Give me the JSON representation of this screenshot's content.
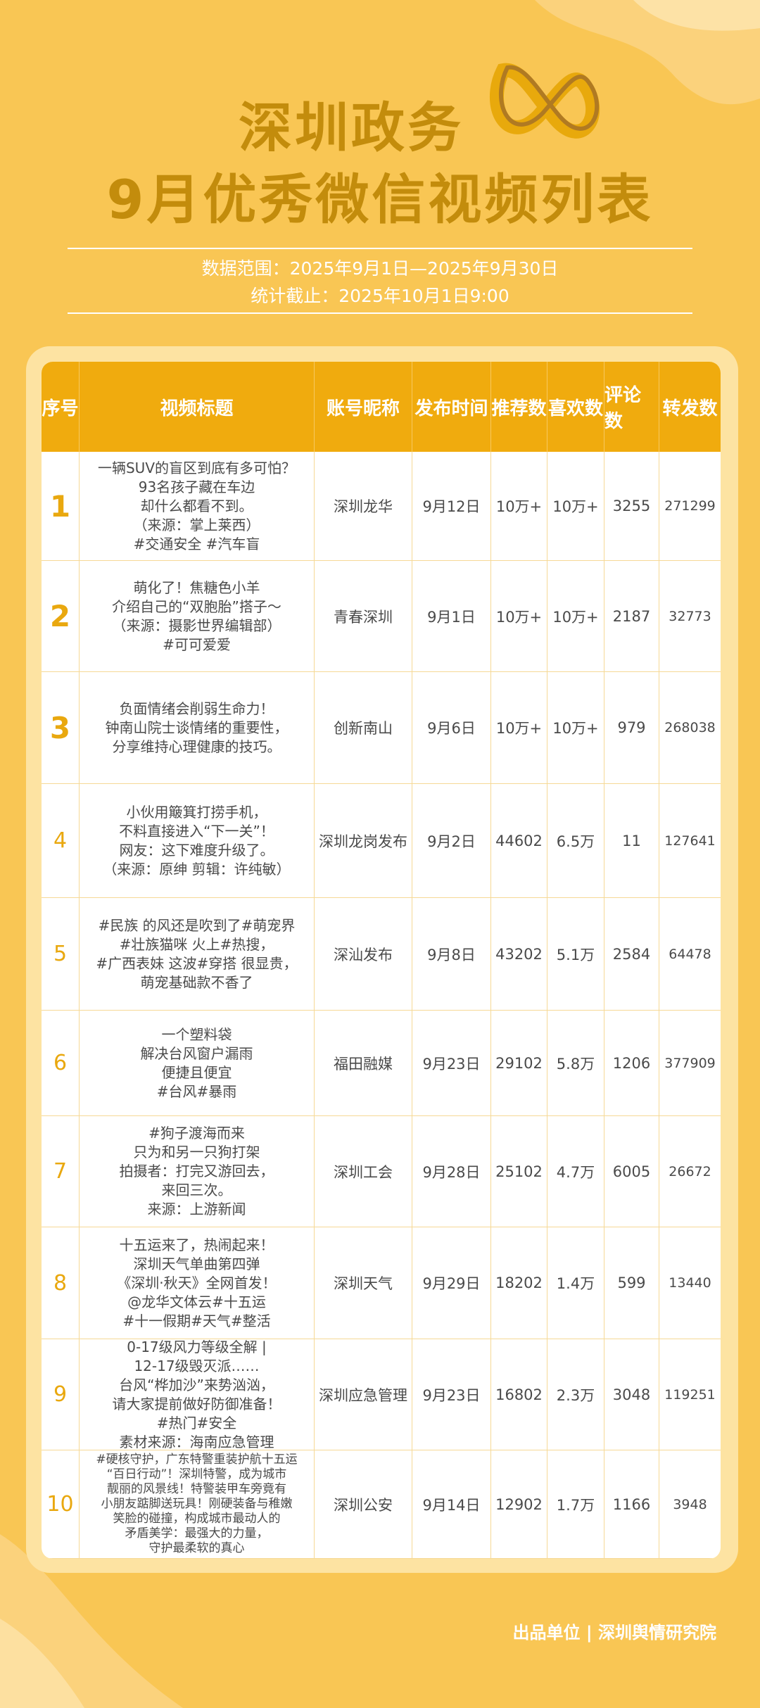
{
  "header": {
    "title_line1": "深圳政务",
    "title_line2": "9月优秀微信视频列表",
    "range": "数据范围：2025年9月1日—2025年9月30日",
    "cutoff": "统计截止：2025年10月1日9:00"
  },
  "table": {
    "headers": [
      "序号",
      "视频标题",
      "账号昵称",
      "发布时间",
      "推荐数",
      "喜欢数",
      "评论数",
      "转发数"
    ],
    "rows": [
      {
        "rank": "1",
        "title": [
          "一辆SUV的盲区到底有多可怕？",
          "93名孩子藏在车边",
          "却什么都看不到。",
          "（来源：掌上莱西）",
          "#交通安全 #汽车盲"
        ],
        "account": "深圳龙华",
        "date": "9月12日",
        "recommend": "10万+",
        "likes": "10万+",
        "comments": 3255,
        "shares": 271299
      },
      {
        "rank": "2",
        "title": [
          "萌化了！焦糖色小羊",
          "介绍自己的“双胞胎”搭子～",
          "（来源：摄影世界编辑部）",
          "#可可爱爱"
        ],
        "account": "青春深圳",
        "date": "9月1日",
        "recommend": "10万+",
        "likes": "10万+",
        "comments": 2187,
        "shares": 32773
      },
      {
        "rank": "3",
        "title": [
          "负面情绪会削弱生命力！",
          "钟南山院士谈情绪的重要性，",
          "分享维持心理健康的技巧。"
        ],
        "account": "创新南山",
        "date": "9月6日",
        "recommend": "10万+",
        "likes": "10万+",
        "comments": 979,
        "shares": 268038
      },
      {
        "rank": "4",
        "title": [
          "小伙用簸箕打捞手机，",
          "不料直接进入“下一关”！",
          "网友：这下难度升级了。",
          "（来源：原绅 剪辑：许纯敏）"
        ],
        "account": "深圳龙岗发布",
        "date": "9月2日",
        "recommend": 44602,
        "likes": "6.5万",
        "comments": 11,
        "shares": 127641
      },
      {
        "rank": "5",
        "title": [
          "#民族 的风还是吹到了#萌宠界",
          "#壮族猫咪 火上#热搜，",
          "#广西表妹 这波#穿搭 很显贵，",
          "萌宠基础款不香了"
        ],
        "account": "深汕发布",
        "date": "9月8日",
        "recommend": 43202,
        "likes": "5.1万",
        "comments": 2584,
        "shares": 64478
      },
      {
        "rank": "6",
        "title": [
          "一个塑料袋",
          "解决台风窗户漏雨",
          "便捷且便宜",
          "#台风#暴雨"
        ],
        "account": "福田融媒",
        "date": "9月23日",
        "recommend": 29102,
        "likes": "5.8万",
        "comments": 1206,
        "shares": 377909
      },
      {
        "rank": "7",
        "title": [
          "#狗子渡海而来",
          "只为和另一只狗打架",
          "拍摄者：打完又游回去，",
          "来回三次。",
          "来源：上游新闻"
        ],
        "account": "深圳工会",
        "date": "9月28日",
        "recommend": 25102,
        "likes": "4.7万",
        "comments": 6005,
        "shares": 26672
      },
      {
        "rank": "8",
        "title": [
          "十五运来了，热闹起来！",
          "深圳天气单曲第四弹",
          "《深圳·秋天》全网首发！",
          "@龙华文体云#十五运",
          "#十一假期#天气#整活"
        ],
        "account": "深圳天气",
        "date": "9月29日",
        "recommend": 18202,
        "likes": "1.4万",
        "comments": 599,
        "shares": 13440
      },
      {
        "rank": "9",
        "title": [
          "0-17级风力等级全解 |",
          "12-17级毁灭派……",
          "台风“桦加沙”来势汹汹，",
          "请大家提前做好防御准备！",
          "#热门#安全",
          "素材来源：海南应急管理"
        ],
        "account": "深圳应急管理",
        "date": "9月23日",
        "recommend": 16802,
        "likes": "2.3万",
        "comments": 3048,
        "shares": 119251
      },
      {
        "rank": "10",
        "title": [
          "#硬核守护，广东特警重装护航十五运",
          "“百日行动”！深圳特警，成为城市",
          "靓丽的风景线！特警装甲车旁竟有",
          "小朋友踮脚送玩具！刚硬装备与稚嫩",
          "笑脸的碰撞，构成城市最动人的",
          "矛盾美学：最强大的力量，",
          "守护最柔软的真心"
        ],
        "account": "深圳公安",
        "date": "9月14日",
        "recommend": 12902,
        "likes": "1.7万",
        "comments": 1166,
        "shares": 3948
      }
    ]
  },
  "footer": "出品单位 | 深圳舆情研究院"
}
